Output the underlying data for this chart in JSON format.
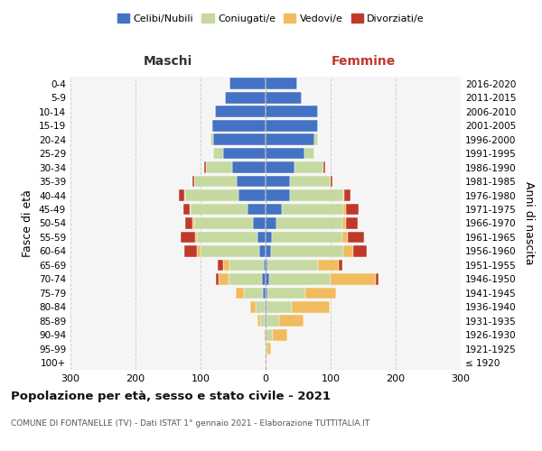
{
  "age_groups": [
    "100+",
    "95-99",
    "90-94",
    "85-89",
    "80-84",
    "75-79",
    "70-74",
    "65-69",
    "60-64",
    "55-59",
    "50-54",
    "45-49",
    "40-44",
    "35-39",
    "30-34",
    "25-29",
    "20-24",
    "15-19",
    "10-14",
    "5-9",
    "0-4"
  ],
  "birth_years": [
    "≤ 1920",
    "1921-1925",
    "1926-1930",
    "1931-1935",
    "1936-1940",
    "1941-1945",
    "1946-1950",
    "1951-1955",
    "1956-1960",
    "1961-1965",
    "1966-1970",
    "1971-1975",
    "1976-1980",
    "1981-1985",
    "1986-1990",
    "1991-1995",
    "1996-2000",
    "2001-2005",
    "2006-2010",
    "2011-2015",
    "2016-2020"
  ],
  "colors": {
    "celibi": "#4472c4",
    "coniugati": "#c5d9a0",
    "vedovi": "#f0bc5e",
    "divorziati": "#c0392b"
  },
  "m_celibi": [
    0,
    0,
    0,
    1,
    2,
    4,
    5,
    3,
    10,
    13,
    20,
    28,
    42,
    45,
    52,
    65,
    80,
    82,
    78,
    62,
    55
  ],
  "m_coniugati": [
    0,
    0,
    2,
    7,
    13,
    30,
    52,
    52,
    90,
    92,
    90,
    87,
    82,
    65,
    40,
    15,
    5,
    1,
    0,
    0,
    0
  ],
  "m_vedovi": [
    0,
    0,
    1,
    5,
    8,
    12,
    15,
    10,
    5,
    3,
    2,
    2,
    1,
    0,
    0,
    0,
    0,
    0,
    0,
    0,
    0
  ],
  "m_divorziati": [
    0,
    0,
    0,
    0,
    0,
    0,
    5,
    8,
    20,
    22,
    12,
    10,
    8,
    3,
    3,
    0,
    0,
    0,
    0,
    0,
    0
  ],
  "f_nubili": [
    0,
    0,
    1,
    1,
    2,
    3,
    5,
    3,
    8,
    10,
    16,
    25,
    38,
    38,
    44,
    60,
    75,
    80,
    80,
    55,
    48
  ],
  "f_coniugate": [
    0,
    3,
    10,
    20,
    38,
    58,
    95,
    78,
    112,
    108,
    102,
    95,
    82,
    62,
    45,
    15,
    5,
    1,
    0,
    0,
    0
  ],
  "f_vedove": [
    1,
    5,
    22,
    38,
    58,
    48,
    70,
    32,
    15,
    8,
    5,
    3,
    1,
    0,
    0,
    0,
    0,
    0,
    0,
    0,
    0
  ],
  "f_divorziate": [
    0,
    0,
    0,
    0,
    0,
    0,
    3,
    5,
    20,
    25,
    18,
    20,
    10,
    3,
    2,
    0,
    0,
    0,
    0,
    0,
    0
  ],
  "xlim": [
    -300,
    300
  ],
  "xticks": [
    -300,
    -200,
    -100,
    0,
    100,
    200,
    300
  ],
  "xticklabels": [
    "300",
    "200",
    "100",
    "0",
    "100",
    "200",
    "300"
  ],
  "title": "Popolazione per età, sesso e stato civile - 2021",
  "subtitle": "COMUNE DI FONTANELLE (TV) - Dati ISTAT 1° gennaio 2021 - Elaborazione TUTTITALIA.IT",
  "ylabel_left": "Fasce di età",
  "ylabel_right": "Anni di nascita",
  "label_maschi": "Maschi",
  "label_femmine": "Femmine",
  "legend_labels": [
    "Celibi/Nubili",
    "Coniugati/e",
    "Vedovi/e",
    "Divorziati/e"
  ],
  "background_color": "#f5f5f5",
  "grid_color": "#cccccc"
}
